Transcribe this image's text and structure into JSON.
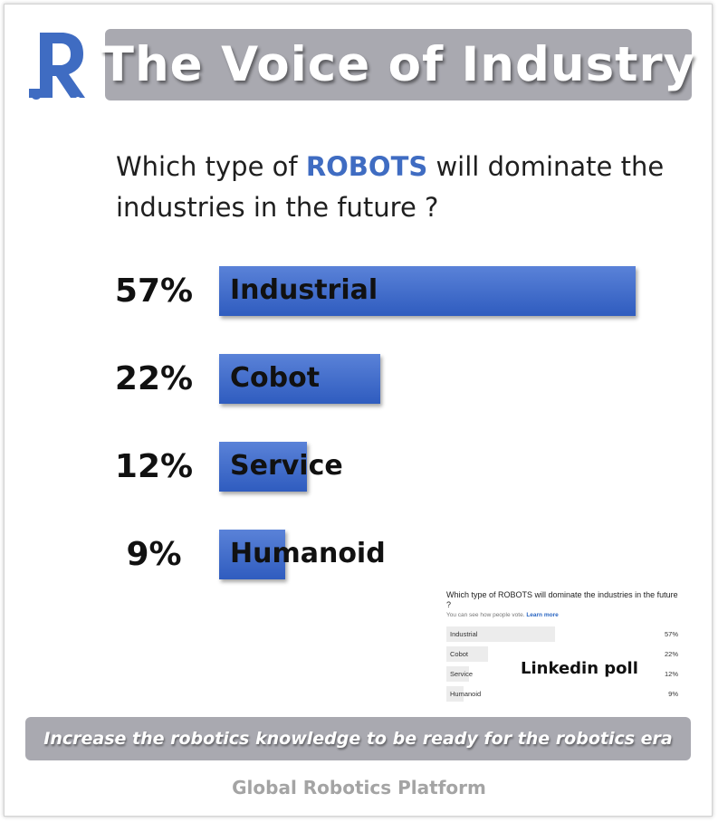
{
  "header": {
    "title": "The Voice of Industry",
    "logo_icon": "robot-r-logo-icon"
  },
  "question": {
    "prefix": "Which type of ",
    "highlight": "ROBOTS",
    "suffix": " will dominate the industries in the future ?"
  },
  "colors": {
    "accent": "#3f6cc2",
    "bar": "#3a65c8",
    "band": "#a9a9b0"
  },
  "chart_data": {
    "type": "bar",
    "orientation": "horizontal",
    "categories": [
      "Industrial",
      "Cobot",
      "Service",
      "Humanoid"
    ],
    "values": [
      57,
      22,
      12,
      9
    ],
    "value_labels": [
      "57%",
      "22%",
      "12%",
      "9%"
    ],
    "xlim": [
      0,
      57
    ]
  },
  "linkedin_poll": {
    "title": "Which type of ROBOTS will dominate the industries in the future ?",
    "subtitle": "You can see how people vote.",
    "learn_more": "Learn more",
    "options": [
      {
        "label": "Industrial",
        "value": "57%"
      },
      {
        "label": "Cobot",
        "value": "22%"
      },
      {
        "label": "Service",
        "value": "12%"
      },
      {
        "label": "Humanoid",
        "value": "9%"
      }
    ],
    "caption": "Linkedin poll"
  },
  "footer": {
    "tagline": "Increase the robotics knowledge to be ready for the robotics era",
    "credit": "Global Robotics Platform"
  }
}
